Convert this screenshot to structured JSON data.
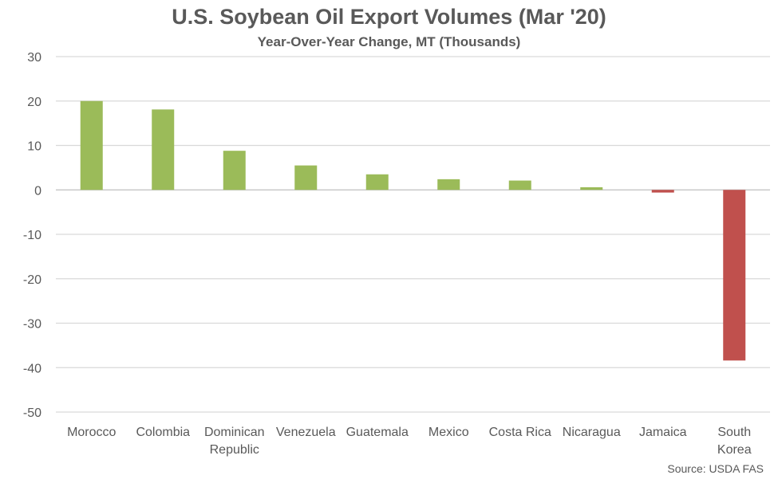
{
  "chart_data": {
    "type": "bar",
    "title": "U.S. Soybean Oil Export Volumes (Mar '20)",
    "subtitle": "Year-Over-Year Change, MT (Thousands)",
    "source": "Source: USDA FAS",
    "categories": [
      [
        "Morocco"
      ],
      [
        "Colombia"
      ],
      [
        "Dominican",
        "Republic"
      ],
      [
        "Venezuela"
      ],
      [
        "Guatemala"
      ],
      [
        "Mexico"
      ],
      [
        "Costa Rica"
      ],
      [
        "Nicaragua"
      ],
      [
        "Jamaica"
      ],
      [
        "South",
        "Korea"
      ]
    ],
    "values": [
      20.0,
      18.1,
      8.8,
      5.5,
      3.5,
      2.4,
      2.1,
      0.6,
      -0.6,
      -38.4
    ],
    "ylim": [
      -50,
      30
    ],
    "yticks": [
      30,
      20,
      10,
      0,
      -10,
      -20,
      -30,
      -40,
      -50
    ],
    "grid": true,
    "colors": {
      "positive": "#9BBB59",
      "negative": "#C0504D",
      "grid": "#D9D9D9",
      "axis": "#BFBFBF"
    }
  }
}
